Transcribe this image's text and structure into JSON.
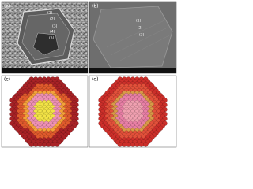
{
  "panels": [
    {
      "label": "(a)",
      "markers": [
        "(1)",
        "(2)",
        "(3)",
        "(4)",
        "(5)"
      ]
    },
    {
      "label": "(b)",
      "markers": [
        "(1)",
        "(2)",
        "(3)"
      ]
    },
    {
      "label": "(c)"
    },
    {
      "label": "(d)"
    }
  ]
}
